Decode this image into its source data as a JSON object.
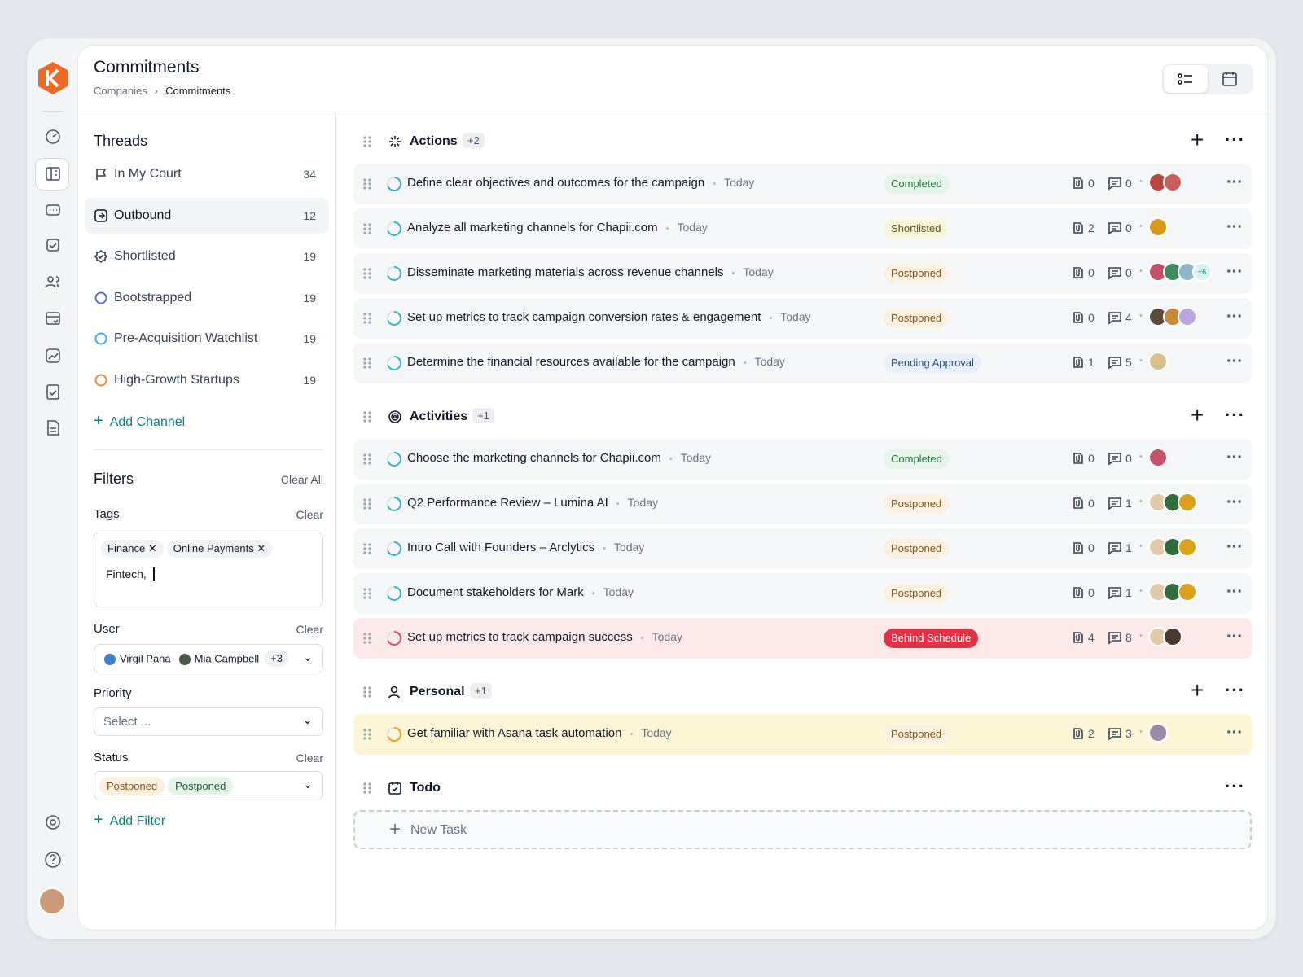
{
  "header": {
    "title": "Commitments",
    "breadcrumb": [
      "Companies",
      "Commitments"
    ]
  },
  "threads": {
    "title": "Threads",
    "items": [
      {
        "label": "In My Court",
        "count": 34
      },
      {
        "label": "Outbound",
        "count": 12
      },
      {
        "label": "Shortlisted",
        "count": 19
      },
      {
        "label": "Bootstrapped",
        "count": 19
      },
      {
        "label": "Pre-Acquisition Watchlist",
        "count": 19
      },
      {
        "label": "High-Growth Startups",
        "count": 19
      }
    ],
    "add": "Add Channel"
  },
  "filters": {
    "title": "Filters",
    "clear_all": "Clear All",
    "tags": {
      "label": "Tags",
      "clear": "Clear",
      "chips": [
        "Finance",
        "Online Payments"
      ],
      "input": "Fintech,"
    },
    "user": {
      "label": "User",
      "clear": "Clear",
      "chips": [
        "Virgil Pana",
        "Mia Campbell"
      ],
      "more": "+3"
    },
    "priority": {
      "label": "Priority",
      "placeholder": "Select ..."
    },
    "status": {
      "label": "Status",
      "clear": "Clear",
      "chips": [
        "Postponed",
        "Postponed"
      ]
    },
    "add": "Add Filter"
  },
  "groups": [
    {
      "name": "Actions",
      "badge": "+2",
      "tasks": [
        {
          "title": "Define clear objectives and outcomes for the campaign",
          "date": "Today",
          "status": "Completed",
          "status_bg": "#e6f4ea",
          "status_fg": "#1f7a3e",
          "attachments": 0,
          "comments": 0,
          "avatars": [
            "#b8483e",
            "#c9605a"
          ]
        },
        {
          "title": "Analyze all marketing channels for Chapii.com",
          "date": "Today",
          "status": "Shortlisted",
          "status_bg": "#f8f6da",
          "status_fg": "#5f5514",
          "attachments": 2,
          "comments": 0,
          "avatars": [
            "#d99a1c"
          ]
        },
        {
          "title": "Disseminate marketing materials across revenue channels",
          "date": "Today",
          "status": "Postponed",
          "status_bg": "#fcf1e0",
          "status_fg": "#7a5415",
          "attachments": 0,
          "comments": 0,
          "avatars": [
            "#c44d6a",
            "#3f8a5f",
            "#8fb6c8"
          ],
          "avatar_more": "+6"
        },
        {
          "title": "Set up metrics to track campaign conversion rates & engagement",
          "date": "Today",
          "status": "Postponed",
          "status_bg": "#fcf1e0",
          "status_fg": "#7a5415",
          "attachments": 0,
          "comments": 4,
          "avatars": [
            "#5a4a3c",
            "#c98a3a",
            "#b9a6e0"
          ]
        },
        {
          "title": "Determine the financial resources available for the campaign",
          "date": "Today",
          "status": "Pending Approval",
          "status_bg": "#e9f0fb",
          "status_fg": "#274b86",
          "attachments": 1,
          "comments": 5,
          "avatars": [
            "#d8c08a"
          ]
        }
      ]
    },
    {
      "name": "Activities",
      "badge": "+1",
      "tasks": [
        {
          "title": "Choose the marketing channels for Chapii.com",
          "date": "Today",
          "status": "Completed",
          "status_bg": "#e6f4ea",
          "status_fg": "#1f7a3e",
          "attachments": 0,
          "comments": 0,
          "avatars": [
            "#c4526a"
          ]
        },
        {
          "title": "Q2 Performance Review – Lumina AI",
          "date": "Today",
          "status": "Postponed",
          "status_bg": "#fcf1e0",
          "status_fg": "#7a5415",
          "attachments": 0,
          "comments": 1,
          "avatars": [
            "#e2c9a8",
            "#2f6e3c",
            "#d9a21a"
          ]
        },
        {
          "title": "Intro Call with Founders – Arclytics",
          "date": "Today",
          "status": "Postponed",
          "status_bg": "#fcf1e0",
          "status_fg": "#7a5415",
          "attachments": 0,
          "comments": 1,
          "avatars": [
            "#e2c9a8",
            "#2f6e3c",
            "#d9a21a"
          ]
        },
        {
          "title": "Document stakeholders for Mark",
          "date": "Today",
          "status": "Postponed",
          "status_bg": "#fcf1e0",
          "status_fg": "#7a5415",
          "attachments": 0,
          "comments": 1,
          "avatars": [
            "#e2c9a8",
            "#2f6e3c",
            "#d9a21a"
          ]
        },
        {
          "title": "Set up metrics to track campaign success",
          "date": "Today",
          "status": "Behind Schedule",
          "status_bg": "#df3346",
          "status_fg": "#ffffff",
          "attachments": 4,
          "comments": 8,
          "avatars": [
            "#e2c9a8",
            "#4a3a32"
          ],
          "highlight": "#fde8ea",
          "ring": "#e24c5c"
        }
      ]
    },
    {
      "name": "Personal",
      "badge": "+1",
      "tasks": [
        {
          "title": "Get familiar with Asana task automation",
          "date": "Today",
          "status": "Postponed",
          "status_bg": "#fcf1e0",
          "status_fg": "#7a5415",
          "attachments": 2,
          "comments": 3,
          "avatars": [
            "#9a8aa8"
          ],
          "highlight": "#fcf6d6",
          "ring": "#f0a020"
        }
      ]
    },
    {
      "name": "Todo",
      "tasks": [],
      "new_task": "New Task"
    }
  ]
}
